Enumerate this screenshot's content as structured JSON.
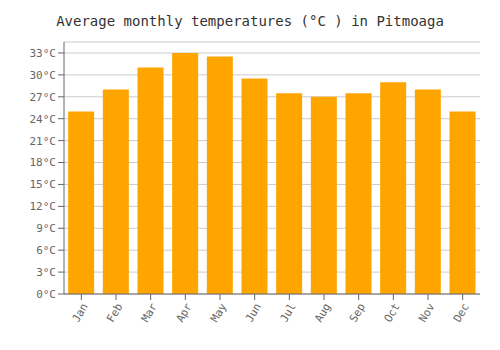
{
  "chart_data": {
    "type": "bar",
    "title": "Average monthly temperatures (°C ) in Pitmoaga",
    "categories": [
      "Jan",
      "Feb",
      "Mar",
      "Apr",
      "May",
      "Jun",
      "Jul",
      "Aug",
      "Sep",
      "Oct",
      "Nov",
      "Dec"
    ],
    "values": [
      25,
      28,
      31,
      33,
      32.5,
      29.5,
      27.5,
      27,
      27.5,
      29,
      28,
      25
    ],
    "color": "#FFA500",
    "ylim": [
      0,
      34.5
    ],
    "yticks": [
      {
        "value": 0,
        "label": "0°C"
      },
      {
        "value": 3,
        "label": "3°C"
      },
      {
        "value": 6,
        "label": "6°C"
      },
      {
        "value": 9,
        "label": "9°C"
      },
      {
        "value": 12,
        "label": "12°C"
      },
      {
        "value": 15,
        "label": "15°C"
      },
      {
        "value": 18,
        "label": "18°C"
      },
      {
        "value": 21,
        "label": "21°C"
      },
      {
        "value": 24,
        "label": "24°C"
      },
      {
        "value": 27,
        "label": "27°C"
      },
      {
        "value": 30,
        "label": "30°C"
      },
      {
        "value": 33,
        "label": "33°C"
      }
    ],
    "grid": true
  }
}
